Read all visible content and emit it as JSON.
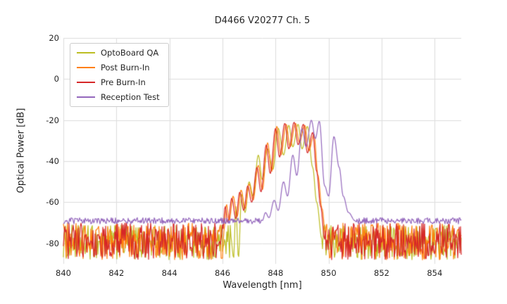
{
  "chart_data": {
    "type": "line",
    "title": "D4466 V20277 Ch. 5",
    "xlabel": "Wavelength [nm]",
    "ylabel": "Optical Power [dB]",
    "xlim": [
      840,
      855
    ],
    "ylim": [
      -90,
      20
    ],
    "x_ticks": [
      840,
      842,
      844,
      846,
      848,
      850,
      852,
      854
    ],
    "y_ticks": [
      20,
      0,
      -20,
      -40,
      -60,
      -80
    ],
    "grid": true,
    "grid_color": "#dddddd",
    "text_color": "#262626",
    "background": "#ffffff",
    "legend_position": "upper-left",
    "series": [
      {
        "name": "OptoBoard QA",
        "color": "#bcbd22",
        "noise_regions": [
          {
            "x0": 840.0,
            "x1": 846.3,
            "y_min": -88,
            "y_max": -71
          },
          {
            "x0": 849.75,
            "x1": 855.0,
            "y_min": -88,
            "y_max": -71
          }
        ],
        "points": [
          [
            846.3,
            -76
          ],
          [
            846.42,
            -87
          ],
          [
            846.5,
            -62
          ],
          [
            846.6,
            -87
          ],
          [
            846.72,
            -56
          ],
          [
            846.85,
            -65
          ],
          [
            847.0,
            -50
          ],
          [
            847.15,
            -57
          ],
          [
            847.35,
            -37
          ],
          [
            847.5,
            -49
          ],
          [
            847.7,
            -34
          ],
          [
            847.9,
            -44
          ],
          [
            848.1,
            -24
          ],
          [
            848.3,
            -37
          ],
          [
            848.5,
            -22.5
          ],
          [
            848.65,
            -33
          ],
          [
            848.85,
            -22
          ],
          [
            849.0,
            -34
          ],
          [
            849.2,
            -23
          ],
          [
            849.4,
            -43
          ],
          [
            849.55,
            -60
          ],
          [
            849.75,
            -78
          ]
        ]
      },
      {
        "name": "Post Burn-In",
        "color": "#ff7f0e",
        "noise_regions": [
          {
            "x0": 840.0,
            "x1": 846.05,
            "y_min": -88,
            "y_max": -70
          },
          {
            "x0": 849.9,
            "x1": 855.0,
            "y_min": -88,
            "y_max": -70
          }
        ],
        "points": [
          [
            846.05,
            -74
          ],
          [
            846.15,
            -61
          ],
          [
            846.25,
            -69
          ],
          [
            846.4,
            -57
          ],
          [
            846.55,
            -67
          ],
          [
            846.7,
            -54
          ],
          [
            846.85,
            -63
          ],
          [
            847.0,
            -51
          ],
          [
            847.15,
            -59
          ],
          [
            847.35,
            -42
          ],
          [
            847.5,
            -54
          ],
          [
            847.7,
            -31
          ],
          [
            847.85,
            -45
          ],
          [
            848.05,
            -23
          ],
          [
            848.2,
            -37
          ],
          [
            848.4,
            -22
          ],
          [
            848.55,
            -33
          ],
          [
            848.75,
            -21.5
          ],
          [
            848.9,
            -31
          ],
          [
            849.1,
            -22.5
          ],
          [
            849.25,
            -35
          ],
          [
            849.45,
            -27
          ],
          [
            849.6,
            -47
          ],
          [
            849.75,
            -63
          ],
          [
            849.9,
            -78
          ]
        ]
      },
      {
        "name": "Pre Burn-In",
        "color": "#d62728",
        "noise_regions": [
          {
            "x0": 840.0,
            "x1": 846.0,
            "y_min": -88,
            "y_max": -70
          },
          {
            "x0": 849.85,
            "x1": 855.0,
            "y_min": -88,
            "y_max": -70
          }
        ],
        "points": [
          [
            846.0,
            -75
          ],
          [
            846.1,
            -62
          ],
          [
            846.2,
            -70
          ],
          [
            846.35,
            -58
          ],
          [
            846.5,
            -68
          ],
          [
            846.65,
            -55
          ],
          [
            846.8,
            -64
          ],
          [
            846.95,
            -52
          ],
          [
            847.1,
            -60
          ],
          [
            847.3,
            -43
          ],
          [
            847.45,
            -55
          ],
          [
            847.65,
            -32
          ],
          [
            847.8,
            -46
          ],
          [
            848.0,
            -24
          ],
          [
            848.15,
            -38
          ],
          [
            848.35,
            -21.5
          ],
          [
            848.5,
            -34
          ],
          [
            848.7,
            -21
          ],
          [
            848.85,
            -32
          ],
          [
            849.05,
            -22
          ],
          [
            849.2,
            -36
          ],
          [
            849.4,
            -26
          ],
          [
            849.55,
            -45
          ],
          [
            849.7,
            -62
          ],
          [
            849.85,
            -78
          ]
        ]
      },
      {
        "name": "Reception Test",
        "color": "#9467bd",
        "noise_regions": [
          {
            "x0": 840.0,
            "x1": 847.5,
            "y_min": -70.5,
            "y_max": -67.5
          },
          {
            "x0": 851.0,
            "x1": 855.0,
            "y_min": -70.5,
            "y_max": -67.5
          }
        ],
        "points": [
          [
            847.5,
            -69
          ],
          [
            847.62,
            -65
          ],
          [
            847.75,
            -67.5
          ],
          [
            847.95,
            -59
          ],
          [
            848.1,
            -64
          ],
          [
            848.3,
            -50
          ],
          [
            848.45,
            -57
          ],
          [
            848.65,
            -37
          ],
          [
            848.8,
            -47
          ],
          [
            849.0,
            -24
          ],
          [
            849.15,
            -33
          ],
          [
            849.35,
            -20
          ],
          [
            849.5,
            -29
          ],
          [
            849.65,
            -20.5
          ],
          [
            849.85,
            -52
          ],
          [
            850.0,
            -57
          ],
          [
            850.2,
            -28
          ],
          [
            850.4,
            -43
          ],
          [
            850.55,
            -57
          ],
          [
            850.75,
            -65
          ],
          [
            851.0,
            -69
          ]
        ]
      }
    ]
  }
}
